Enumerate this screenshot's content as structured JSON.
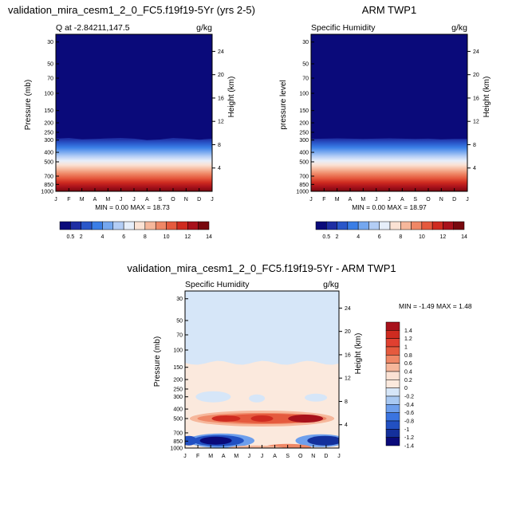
{
  "chart_data": [
    {
      "type": "heatmap",
      "id": "p1",
      "title": "validation_mira_cesm1_2_0_FC5.f19f19-5Yr (yrs 2-5)",
      "left_label": "Q at -2.84211,147.5",
      "units": "g/kg",
      "xlabel": "",
      "ylabel": "Pressure (mb)",
      "ylabel_right": "Height (km)",
      "x_ticks": [
        "J",
        "F",
        "M",
        "A",
        "M",
        "J",
        "J",
        "A",
        "S",
        "O",
        "N",
        "D",
        "J"
      ],
      "y_ticks": [
        "30",
        "50",
        "70",
        "100",
        "150",
        "200",
        "250",
        "300",
        "400",
        "500",
        "700",
        "850",
        "1000"
      ],
      "y_ticks_right": [
        "24",
        "20",
        "16",
        "12",
        "8",
        "4"
      ],
      "ylim": [
        1000,
        25
      ],
      "stats": "MIN =   0.00 MAX =  18.73",
      "min": 0.0,
      "max": 18.73,
      "colorbar_labels": [
        "0.5",
        "2",
        "4",
        "6",
        "8",
        "10",
        "12",
        "14"
      ],
      "colorbar_colors": [
        "#0a0a7a",
        "#1e2ea3",
        "#2a57c9",
        "#3a7ee6",
        "#74a7ef",
        "#b3cdf5",
        "#e6eefa",
        "#fbe2d4",
        "#f6b79b",
        "#ef8766",
        "#e55a3e",
        "#cf2b20",
        "#a8111b",
        "#78080e"
      ],
      "boundary_level_mb": [
        290,
        285,
        295,
        292,
        288,
        285,
        290,
        300,
        296,
        285,
        290,
        298,
        290
      ]
    },
    {
      "type": "heatmap",
      "id": "p2",
      "title": "ARM TWP1",
      "left_label": "Specific Humidity",
      "units": "g/kg",
      "ylabel": "pressure level",
      "ylabel_right": "Height (km)",
      "x_ticks": [
        "J",
        "F",
        "M",
        "A",
        "M",
        "J",
        "J",
        "A",
        "S",
        "O",
        "N",
        "D",
        "J"
      ],
      "y_ticks": [
        "30",
        "50",
        "70",
        "100",
        "150",
        "200",
        "250",
        "300",
        "400",
        "500",
        "700",
        "850",
        "1000"
      ],
      "y_ticks_right": [
        "24",
        "20",
        "16",
        "12",
        "8",
        "4"
      ],
      "ylim": [
        1000,
        25
      ],
      "stats": "MIN =   0.00 MAX =  18.97",
      "min": 0.0,
      "max": 18.97,
      "colorbar_labels": [
        "0.5",
        "2",
        "4",
        "6",
        "8",
        "10",
        "12",
        "14"
      ],
      "colorbar_colors": [
        "#0a0a7a",
        "#1e2ea3",
        "#2a57c9",
        "#3a7ee6",
        "#74a7ef",
        "#b3cdf5",
        "#e6eefa",
        "#fbe2d4",
        "#f6b79b",
        "#ef8766",
        "#e55a3e",
        "#cf2b20",
        "#a8111b",
        "#78080e"
      ],
      "boundary_level_mb": [
        292,
        290,
        288,
        290,
        292,
        290,
        288,
        290,
        292,
        290,
        295,
        292,
        292
      ]
    },
    {
      "type": "heatmap",
      "id": "p3",
      "title": "validation_mira_cesm1_2_0_FC5.f19f19-5Yr - ARM TWP1",
      "left_label": "Specific Humidity",
      "units": "g/kg",
      "ylabel": "Pressure (mb)",
      "ylabel_right": "Height (km)",
      "x_ticks": [
        "J",
        "F",
        "M",
        "A",
        "M",
        "J",
        "J",
        "A",
        "S",
        "O",
        "N",
        "D",
        "J"
      ],
      "y_ticks": [
        "30",
        "50",
        "70",
        "100",
        "150",
        "200",
        "250",
        "300",
        "400",
        "500",
        "700",
        "850",
        "1000"
      ],
      "y_ticks_right": [
        "24",
        "20",
        "16",
        "12",
        "8",
        "4"
      ],
      "ylim": [
        1000,
        25
      ],
      "stats": "MIN =  -1.49 MAX =   1.48",
      "min": -1.49,
      "max": 1.48,
      "colorbar_labels": [
        "1.4",
        "1.2",
        "1",
        "0.8",
        "0.6",
        "0.4",
        "0.2",
        "0",
        "-0.2",
        "-0.4",
        "-0.6",
        "-0.8",
        "-1",
        "-1.2",
        "-1.4"
      ],
      "colorbar_colors": [
        "#a8111b",
        "#cf2b20",
        "#e04030",
        "#e55a3e",
        "#ef8766",
        "#f6b79b",
        "#fbe2d4",
        "#fbe9dd",
        "#d6e6f8",
        "#a9c9f2",
        "#6e9fec",
        "#3a74e0",
        "#2250c2",
        "#14309c",
        "#0a0a7a"
      ],
      "features": [
        {
          "name": "upper-dry-band",
          "value": -0.1,
          "from_mb": 25,
          "to_mb": 135
        },
        {
          "name": "mid-moist-band",
          "value": 0.1,
          "from_mb": 135,
          "to_mb": 650
        },
        {
          "name": "positive-500mb-lobe",
          "value": 1.0,
          "level_mb": 500
        },
        {
          "name": "negative-850mb-lobe-west",
          "value": -1.2,
          "level_mb": 850
        },
        {
          "name": "negative-850mb-lobe-east",
          "value": -1.2,
          "level_mb": 850
        },
        {
          "name": "positive-near-surface",
          "value": 0.8,
          "level_mb": 950
        }
      ]
    }
  ]
}
